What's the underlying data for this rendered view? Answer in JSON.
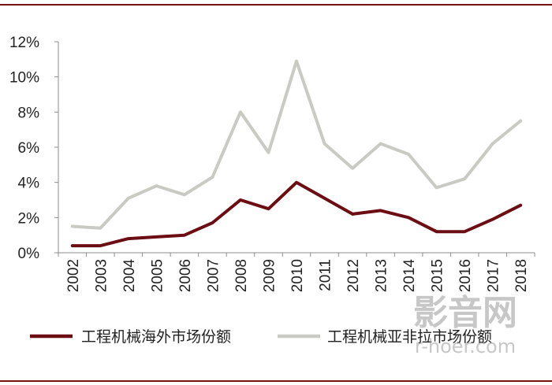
{
  "chart_data": {
    "type": "line",
    "title": "",
    "xlabel": "",
    "ylabel": "",
    "x": [
      "2002",
      "2003",
      "2004",
      "2005",
      "2006",
      "2007",
      "2008",
      "2009",
      "2010",
      "2011",
      "2012",
      "2013",
      "2014",
      "2015",
      "2016",
      "2017",
      "2018"
    ],
    "ylim": [
      0,
      12
    ],
    "yticks": [
      "0%",
      "2%",
      "4%",
      "6%",
      "8%",
      "10%",
      "12%"
    ],
    "grid": false,
    "legend_position": "bottom",
    "series": [
      {
        "name": "工程机械海外市场份额",
        "color": "#6b0d12",
        "values": [
          0.4,
          0.4,
          0.8,
          0.9,
          1.0,
          1.7,
          3.0,
          2.5,
          4.0,
          3.1,
          2.2,
          2.4,
          2.0,
          1.2,
          1.2,
          1.9,
          2.7
        ]
      },
      {
        "name": "工程机械亚非拉市场份额",
        "color": "#c9cac3",
        "values": [
          1.5,
          1.4,
          3.1,
          3.8,
          3.3,
          4.3,
          8.0,
          5.7,
          10.9,
          6.2,
          4.8,
          6.2,
          5.6,
          3.7,
          4.2,
          6.2,
          7.5
        ]
      }
    ]
  },
  "watermark": {
    "main": "影音网",
    "sub": "r-hoer.com"
  }
}
